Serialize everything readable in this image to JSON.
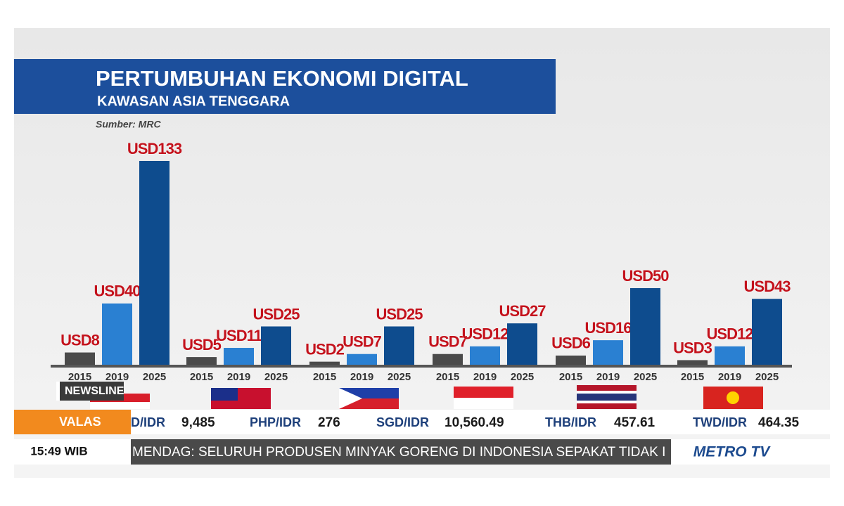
{
  "header": {
    "title": "PERTUMBUHAN EKONOMI DIGITAL",
    "subtitle": "KAWASAN ASIA TENGGARA",
    "source": "Sumber: MRC"
  },
  "chart_data": [
    {
      "type": "bar",
      "categories": [
        "2015",
        "2019",
        "2025"
      ],
      "values": [
        8,
        40,
        133
      ],
      "value_labels": [
        "USD8",
        "USD40",
        "USD133"
      ],
      "colors": [
        "#4a4a4a",
        "#2a80d2",
        "#0e4c8e"
      ]
    },
    {
      "type": "bar",
      "categories": [
        "2015",
        "2019",
        "2025"
      ],
      "values": [
        5,
        11,
        25
      ],
      "value_labels": [
        "USD5",
        "USD11",
        "USD25"
      ],
      "colors": [
        "#4a4a4a",
        "#2a80d2",
        "#0e4c8e"
      ]
    },
    {
      "type": "bar",
      "categories": [
        "2015",
        "2019",
        "2025"
      ],
      "values": [
        2,
        7,
        25
      ],
      "value_labels": [
        "USD2",
        "USD7",
        "USD25"
      ],
      "colors": [
        "#4a4a4a",
        "#2a80d2",
        "#0e4c8e"
      ]
    },
    {
      "type": "bar",
      "categories": [
        "2015",
        "2019",
        "2025"
      ],
      "values": [
        7,
        12,
        27
      ],
      "value_labels": [
        "USD7",
        "USD12",
        "USD27"
      ],
      "colors": [
        "#4a4a4a",
        "#2a80d2",
        "#0e4c8e"
      ]
    },
    {
      "type": "bar",
      "categories": [
        "2015",
        "2019",
        "2025"
      ],
      "values": [
        6,
        16,
        50
      ],
      "value_labels": [
        "USD6",
        "USD16",
        "USD50"
      ],
      "colors": [
        "#4a4a4a",
        "#2a80d2",
        "#0e4c8e"
      ]
    },
    {
      "type": "bar",
      "categories": [
        "2015",
        "2019",
        "2025"
      ],
      "values": [
        3,
        12,
        43
      ],
      "value_labels": [
        "USD3",
        "USD12",
        "USD43"
      ],
      "colors": [
        "#4a4a4a",
        "#2a80d2",
        "#0e4c8e"
      ]
    }
  ],
  "overlay": {
    "program": "NEWSLINE",
    "ticker_label": "VALAS",
    "rates": [
      {
        "pair": "D/IDR",
        "rate": "9,485"
      },
      {
        "pair": "PHP/IDR",
        "rate": "276"
      },
      {
        "pair": "SGD/IDR",
        "rate": "10,560.49"
      },
      {
        "pair": "THB/IDR",
        "rate": "457.61"
      },
      {
        "pair": "TWD/IDR",
        "rate": "464.35"
      }
    ],
    "time": "15:49 WIB",
    "headline": "MENDAG: SELURUH PRODUSEN MINYAK GORENG DI INDONESIA SEPAKAT TIDAK I",
    "logo": "METRO TV"
  }
}
